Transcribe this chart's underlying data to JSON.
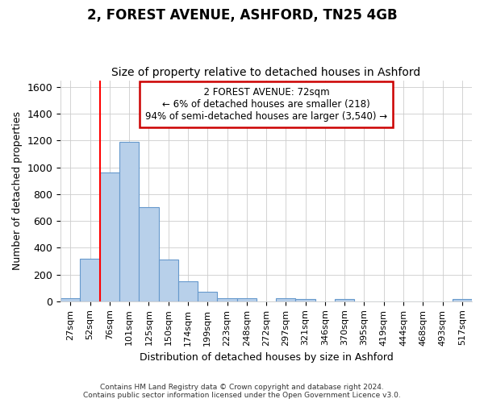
{
  "title": "2, FOREST AVENUE, ASHFORD, TN25 4GB",
  "subtitle": "Size of property relative to detached houses in Ashford",
  "xlabel": "Distribution of detached houses by size in Ashford",
  "ylabel": "Number of detached properties",
  "footer_line1": "Contains HM Land Registry data © Crown copyright and database right 2024.",
  "footer_line2": "Contains public sector information licensed under the Open Government Licence v3.0.",
  "annotation_line1": "2 FOREST AVENUE: 72sqm",
  "annotation_line2": "← 6% of detached houses are smaller (218)",
  "annotation_line3": "94% of semi-detached houses are larger (3,540) →",
  "bar_labels": [
    "27sqm",
    "52sqm",
    "76sqm",
    "101sqm",
    "125sqm",
    "150sqm",
    "174sqm",
    "199sqm",
    "223sqm",
    "248sqm",
    "272sqm",
    "297sqm",
    "321sqm",
    "346sqm",
    "370sqm",
    "395sqm",
    "419sqm",
    "444sqm",
    "468sqm",
    "493sqm",
    "517sqm"
  ],
  "bar_values": [
    25,
    315,
    960,
    1190,
    700,
    310,
    150,
    70,
    25,
    20,
    0,
    20,
    15,
    0,
    15,
    0,
    0,
    0,
    0,
    0,
    15
  ],
  "bar_color": "#b8d0ea",
  "bar_edge_color": "#6699cc",
  "red_line_x": 2,
  "ylim": [
    0,
    1650
  ],
  "yticks": [
    0,
    200,
    400,
    600,
    800,
    1000,
    1200,
    1400,
    1600
  ],
  "bg_color": "#ffffff",
  "plot_bg_color": "#ffffff",
  "annotation_box_color": "#ffffff",
  "annotation_box_edge_color": "#cc0000",
  "grid_color": "#cccccc",
  "title_fontsize": 12,
  "subtitle_fontsize": 10,
  "ylabel_fontsize": 9,
  "xlabel_fontsize": 9
}
